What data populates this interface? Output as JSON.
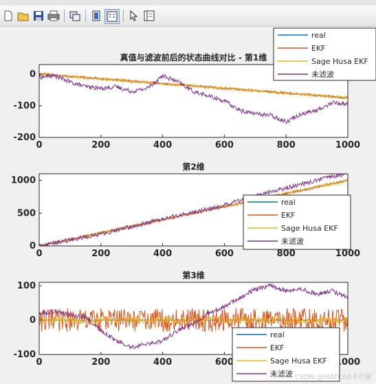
{
  "toolbar": {
    "icons": [
      "new-figure-icon",
      "open-icon",
      "save-icon",
      "print-icon",
      "link-icon",
      "colorbar-icon",
      "legend-icon",
      "select-arrow-icon",
      "property-editor-icon"
    ]
  },
  "watermark": "CSDN @MATLAB卡尔曼",
  "chart_data": [
    {
      "type": "line",
      "title": "真值与滤波前后的状态曲线对比 - 第1维",
      "xlim": [
        0,
        1000
      ],
      "ylim": [
        -200,
        30
      ],
      "xticks": [
        0,
        200,
        400,
        600,
        800,
        1000
      ],
      "yticks": [
        0,
        -100,
        -200
      ],
      "legend": "top-right",
      "series": [
        {
          "name": "real",
          "color": "#0072BD",
          "x": [
            0,
            1000
          ],
          "y": [
            0,
            -75
          ]
        },
        {
          "name": "EKF",
          "color": "#D95319",
          "x": [
            0,
            1000
          ],
          "y": [
            0,
            -75
          ]
        },
        {
          "name": "Sage Husa EKF",
          "color": "#EDB120",
          "x": [
            0,
            1000
          ],
          "y": [
            0,
            -75
          ]
        },
        {
          "name": "未滤波",
          "color": "#7E2F8E",
          "x": [
            0,
            50,
            100,
            150,
            200,
            250,
            300,
            350,
            400,
            450,
            500,
            550,
            600,
            650,
            700,
            750,
            800,
            850,
            900,
            950,
            1000
          ],
          "y": [
            -10,
            -5,
            -25,
            -40,
            -45,
            -40,
            -55,
            -45,
            -5,
            -25,
            -55,
            -70,
            -85,
            -115,
            -125,
            -130,
            -150,
            -125,
            -115,
            -90,
            -95
          ]
        }
      ]
    },
    {
      "type": "line",
      "title": "第2维",
      "xlim": [
        0,
        1000
      ],
      "ylim": [
        0,
        1100
      ],
      "xticks": [
        0,
        200,
        400,
        600,
        800,
        1000
      ],
      "yticks": [
        0,
        500,
        1000
      ],
      "legend": "bottom-right",
      "series": [
        {
          "name": "real",
          "color": "#0072BD",
          "x": [
            0,
            1000
          ],
          "y": [
            0,
            1000
          ]
        },
        {
          "name": "EKF",
          "color": "#D95319",
          "x": [
            0,
            1000
          ],
          "y": [
            0,
            1000
          ]
        },
        {
          "name": "Sage Husa EKF",
          "color": "#EDB120",
          "x": [
            0,
            1000
          ],
          "y": [
            0,
            1000
          ]
        },
        {
          "name": "未滤波",
          "color": "#7E2F8E",
          "x": [
            0,
            200,
            400,
            600,
            700,
            800,
            900,
            1000
          ],
          "y": [
            0,
            180,
            410,
            620,
            760,
            880,
            1000,
            1110
          ]
        }
      ]
    },
    {
      "type": "line",
      "title": "第3维",
      "xlim": [
        0,
        1000
      ],
      "ylim": [
        -100,
        110
      ],
      "xticks": [
        0,
        200,
        400,
        600,
        800,
        1000
      ],
      "yticks": [
        100,
        0,
        -100
      ],
      "legend": "bottom-right",
      "series": [
        {
          "name": "real",
          "color": "#0072BD",
          "x": [
            0,
            1000
          ],
          "y": [
            0,
            0
          ]
        },
        {
          "name": "EKF",
          "color": "#D95319",
          "x": [
            0,
            1000
          ],
          "y": [
            0,
            0
          ],
          "noise_amplitude": 35
        },
        {
          "name": "Sage Husa EKF",
          "color": "#EDB120",
          "x": [
            0,
            1000
          ],
          "y": [
            0,
            0
          ],
          "noise_amplitude": 10
        },
        {
          "name": "未滤波",
          "color": "#7E2F8E",
          "x": [
            0,
            50,
            100,
            150,
            200,
            250,
            300,
            350,
            400,
            450,
            500,
            550,
            600,
            650,
            700,
            750,
            800,
            850,
            900,
            950,
            1000
          ],
          "y": [
            20,
            25,
            15,
            10,
            -30,
            -60,
            -80,
            -70,
            -60,
            -30,
            -10,
            20,
            40,
            65,
            90,
            100,
            85,
            90,
            75,
            85,
            65
          ]
        }
      ]
    }
  ]
}
